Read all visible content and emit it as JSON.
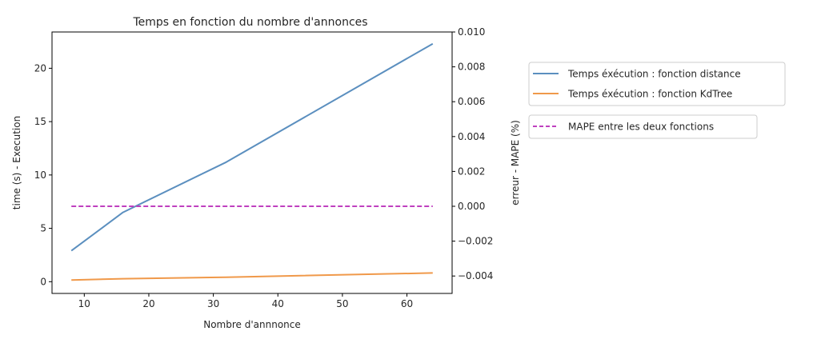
{
  "chart_data": {
    "type": "line",
    "title": "Temps en fonction du nombre d'annonces",
    "xlabel": "Nombre d'annnonce",
    "ylabel": "time (s) - Execution",
    "ylabel_right": "erreur - MAPE (%)",
    "xlim": [
      5,
      67
    ],
    "ylim": [
      -1.1,
      23.4
    ],
    "ylim_right": [
      -0.005,
      0.01
    ],
    "x_ticks": [
      10,
      20,
      30,
      40,
      50,
      60
    ],
    "y_ticks": [
      0,
      5,
      10,
      15,
      20
    ],
    "y_ticks_right": [
      -0.004,
      -0.002,
      0.0,
      0.002,
      0.004,
      0.006,
      0.008,
      0.01
    ],
    "y_tick_labels_right": [
      "−0.004",
      "−0.002",
      "0.000",
      "0.002",
      "0.004",
      "0.006",
      "0.008",
      "0.010"
    ],
    "grid": false,
    "series": [
      {
        "name": "Temps éxécution : fonction distance",
        "axis": "left",
        "color": "#5b8fbf",
        "dash": "solid",
        "x": [
          8,
          16,
          32,
          64
        ],
        "y": [
          2.9,
          6.5,
          11.2,
          22.3
        ]
      },
      {
        "name": "Temps éxécution : fonction KdTree",
        "axis": "left",
        "color": "#f0994a",
        "dash": "solid",
        "x": [
          8,
          16,
          32,
          64
        ],
        "y": [
          0.15,
          0.28,
          0.42,
          0.82
        ]
      },
      {
        "name": "MAPE entre les deux fonctions",
        "axis": "right",
        "color": "#bf40bf",
        "dash": "dashed",
        "x": [
          8,
          16,
          32,
          64
        ],
        "y": [
          0.0,
          0.0,
          0.0,
          0.0
        ]
      }
    ],
    "legend": [
      {
        "placement": "right",
        "entries": [
          "Temps éxécution : fonction distance",
          "Temps éxécution : fonction KdTree"
        ]
      },
      {
        "placement": "right",
        "entries": [
          "MAPE entre les deux fonctions"
        ]
      }
    ]
  }
}
